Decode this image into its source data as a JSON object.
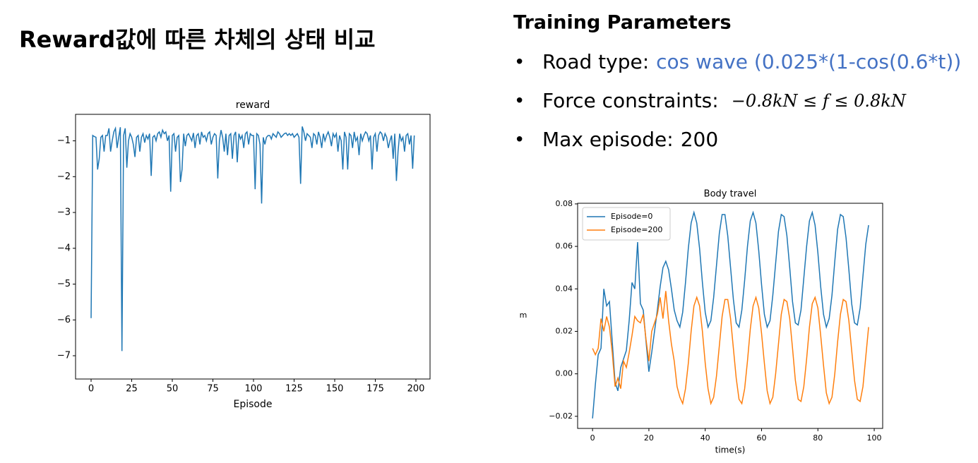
{
  "slide": {
    "title": "Reward값에 따른 차체의 상태 비교",
    "params_heading": "Training Parameters",
    "bullets": [
      {
        "label": "Road type:",
        "value": "cos wave (0.025*(1-cos(0.6*t))"
      },
      {
        "label": "Force constraints:",
        "value": "−0.8kN ≤ f ≤ 0.8kN"
      },
      {
        "label": "Max episode:",
        "value": "200"
      }
    ]
  },
  "chart_data": [
    {
      "type": "line",
      "title": "reward",
      "xlabel": "Episode",
      "x": [
        0,
        1,
        2,
        3,
        4,
        5,
        6,
        7,
        8,
        9,
        10,
        11,
        12,
        13,
        14,
        15,
        16,
        17,
        18,
        19,
        20,
        21,
        22,
        23,
        24,
        25,
        26,
        27,
        28,
        29,
        30,
        31,
        32,
        33,
        34,
        35,
        36,
        37,
        38,
        39,
        40,
        41,
        42,
        43,
        44,
        45,
        46,
        47,
        48,
        49,
        50,
        51,
        52,
        53,
        54,
        55,
        56,
        57,
        58,
        59,
        60,
        61,
        62,
        63,
        64,
        65,
        66,
        67,
        68,
        69,
        70,
        71,
        72,
        73,
        74,
        75,
        76,
        77,
        78,
        79,
        80,
        81,
        82,
        83,
        84,
        85,
        86,
        87,
        88,
        89,
        90,
        91,
        92,
        93,
        94,
        95,
        96,
        97,
        98,
        99,
        100,
        101,
        102,
        103,
        104,
        105,
        106,
        107,
        108,
        109,
        110,
        111,
        112,
        113,
        114,
        115,
        116,
        117,
        118,
        119,
        120,
        121,
        122,
        123,
        124,
        125,
        126,
        127,
        128,
        129,
        130,
        131,
        132,
        133,
        134,
        135,
        136,
        137,
        138,
        139,
        140,
        141,
        142,
        143,
        144,
        145,
        146,
        147,
        148,
        149,
        150,
        151,
        152,
        153,
        154,
        155,
        156,
        157,
        158,
        159,
        160,
        161,
        162,
        163,
        164,
        165,
        166,
        167,
        168,
        169,
        170,
        171,
        172,
        173,
        174,
        175,
        176,
        177,
        178,
        179,
        180,
        181,
        182,
        183,
        184,
        185,
        186,
        187,
        188,
        189,
        190,
        191,
        192,
        193,
        194,
        195,
        196,
        197,
        198,
        199
      ],
      "series": [
        {
          "color": "#1f77b4",
          "values": [
            -5.95,
            -0.85,
            -0.88,
            -0.9,
            -1.8,
            -1.5,
            -0.9,
            -0.85,
            -1.3,
            -0.85,
            -0.85,
            -0.65,
            -1.3,
            -1.0,
            -0.75,
            -0.65,
            -1.2,
            -0.9,
            -0.62,
            -6.87,
            -0.85,
            -0.65,
            -1.75,
            -1.0,
            -0.8,
            -0.9,
            -1.1,
            -1.45,
            -0.9,
            -0.85,
            -1.3,
            -0.9,
            -0.8,
            -1.05,
            -0.85,
            -0.95,
            -0.8,
            -1.98,
            -0.9,
            -0.85,
            -1.0,
            -0.8,
            -0.75,
            -0.9,
            -0.7,
            -0.8,
            -0.75,
            -1.0,
            -0.85,
            -2.42,
            -0.85,
            -0.8,
            -1.3,
            -0.9,
            -0.85,
            -2.15,
            -1.8,
            -0.8,
            -1.15,
            -0.85,
            -0.8,
            -0.9,
            -1.0,
            -0.78,
            -1.2,
            -0.85,
            -0.8,
            -1.1,
            -0.75,
            -0.9,
            -0.85,
            -1.0,
            -0.8,
            -0.75,
            -1.1,
            -0.9,
            -0.8,
            -0.85,
            -2.05,
            -1.0,
            -0.7,
            -0.9,
            -1.3,
            -0.8,
            -1.4,
            -0.85,
            -0.8,
            -1.5,
            -0.85,
            -0.75,
            -1.6,
            -0.8,
            -0.95,
            -0.85,
            -1.2,
            -0.8,
            -0.75,
            -1.1,
            -0.8,
            -0.85,
            -0.85,
            -2.35,
            -0.8,
            -0.85,
            -1.1,
            -2.75,
            -0.9,
            -1.1,
            -0.9,
            -0.85,
            -0.85,
            -0.95,
            -0.8,
            -0.85,
            -0.9,
            -0.75,
            -0.8,
            -0.9,
            -0.85,
            -0.8,
            -0.78,
            -0.85,
            -0.8,
            -0.85,
            -0.8,
            -0.9,
            -0.85,
            -0.8,
            -0.9,
            -2.2,
            -0.6,
            -0.75,
            -1.0,
            -0.8,
            -0.85,
            -0.9,
            -1.2,
            -0.8,
            -0.85,
            -1.1,
            -0.75,
            -0.9,
            -1.2,
            -0.8,
            -1.0,
            -0.85,
            -0.75,
            -0.9,
            -1.15,
            -0.8,
            -0.9,
            -0.8,
            -1.3,
            -0.85,
            -1.0,
            -1.8,
            -0.75,
            -0.9,
            -1.8,
            -0.8,
            -0.85,
            -1.2,
            -0.75,
            -1.0,
            -0.9,
            -1.4,
            -0.8,
            -1.0,
            -0.85,
            -0.75,
            -0.8,
            -1.0,
            -0.85,
            -1.8,
            -0.9,
            -0.8,
            -1.3,
            -0.85,
            -0.75,
            -0.8,
            -1.0,
            -0.8,
            -0.9,
            -1.2,
            -1.0,
            -0.85,
            -1.5,
            -0.8,
            -2.12,
            -1.3,
            -0.8,
            -1.0,
            -0.9,
            -1.3,
            -0.85,
            -0.8,
            -1.1,
            -0.85,
            -1.78,
            -0.85
          ]
        }
      ],
      "xlim": [
        -9.57,
        208.7
      ],
      "ylim": [
        -7.65,
        -0.26
      ],
      "xticks": [
        0,
        25,
        50,
        75,
        100,
        125,
        150,
        175,
        200
      ],
      "yticks": [
        {
          "value": -1,
          "label": "−1"
        },
        {
          "value": -2,
          "label": "−2"
        },
        {
          "value": -3,
          "label": "−3"
        },
        {
          "value": -4,
          "label": "−4"
        },
        {
          "value": -5,
          "label": "−5"
        },
        {
          "value": -6,
          "label": "−6"
        },
        {
          "value": -7,
          "label": "−7"
        }
      ]
    },
    {
      "type": "line",
      "title": "Body travel",
      "xlabel": "time(s)",
      "ylabel": "m",
      "legend": "upper left",
      "x": [
        0,
        1,
        2,
        3,
        4,
        5,
        6,
        7,
        8,
        9,
        10,
        11,
        12,
        13,
        14,
        15,
        16,
        17,
        18,
        19,
        20,
        21,
        22,
        23,
        24,
        25,
        26,
        27,
        28,
        29,
        30,
        31,
        32,
        33,
        34,
        35,
        36,
        37,
        38,
        39,
        40,
        41,
        42,
        43,
        44,
        45,
        46,
        47,
        48,
        49,
        50,
        51,
        52,
        53,
        54,
        55,
        56,
        57,
        58,
        59,
        60,
        61,
        62,
        63,
        64,
        65,
        66,
        67,
        68,
        69,
        70,
        71,
        72,
        73,
        74,
        75,
        76,
        77,
        78,
        79,
        80,
        81,
        82,
        83,
        84,
        85,
        86,
        87,
        88,
        89,
        90,
        91,
        92,
        93,
        94,
        95,
        96,
        97,
        98
      ],
      "series": [
        {
          "name": "Episode=0",
          "color": "#1f77b4",
          "values": [
            -0.021,
            -0.005,
            0.009,
            0.012,
            0.04,
            0.032,
            0.034,
            0.015,
            -0.004,
            -0.008,
            0.003,
            0.007,
            0.011,
            0.025,
            0.043,
            0.04,
            0.062,
            0.033,
            0.03,
            0.015,
            0.001,
            0.01,
            0.02,
            0.03,
            0.041,
            0.05,
            0.053,
            0.049,
            0.04,
            0.03,
            0.025,
            0.022,
            0.029,
            0.043,
            0.059,
            0.071,
            0.076,
            0.071,
            0.059,
            0.043,
            0.029,
            0.022,
            0.025,
            0.036,
            0.051,
            0.066,
            0.075,
            0.075,
            0.065,
            0.05,
            0.035,
            0.024,
            0.022,
            0.03,
            0.044,
            0.06,
            0.072,
            0.076,
            0.071,
            0.058,
            0.042,
            0.028,
            0.022,
            0.025,
            0.037,
            0.052,
            0.067,
            0.075,
            0.074,
            0.065,
            0.05,
            0.034,
            0.024,
            0.023,
            0.03,
            0.045,
            0.06,
            0.072,
            0.076,
            0.07,
            0.057,
            0.041,
            0.028,
            0.022,
            0.026,
            0.037,
            0.053,
            0.068,
            0.075,
            0.074,
            0.064,
            0.049,
            0.033,
            0.024,
            0.023,
            0.031,
            0.046,
            0.061,
            0.07
          ]
        },
        {
          "name": "Episode=200",
          "color": "#ff7f0e",
          "values": [
            0.012,
            0.009,
            0.012,
            0.026,
            0.02,
            0.027,
            0.022,
            0.01,
            -0.006,
            -0.002,
            -0.007,
            0.006,
            0.003,
            0.01,
            0.018,
            0.027,
            0.025,
            0.024,
            0.028,
            0.016,
            0.006,
            0.02,
            0.024,
            0.028,
            0.036,
            0.026,
            0.039,
            0.025,
            0.014,
            0.006,
            -0.006,
            -0.011,
            -0.014,
            -0.007,
            0.005,
            0.02,
            0.032,
            0.036,
            0.032,
            0.02,
            0.005,
            -0.007,
            -0.014,
            -0.011,
            -0.001,
            0.013,
            0.027,
            0.035,
            0.035,
            0.026,
            0.012,
            -0.002,
            -0.012,
            -0.014,
            -0.007,
            0.006,
            0.021,
            0.032,
            0.036,
            0.031,
            0.019,
            0.005,
            -0.008,
            -0.014,
            -0.011,
            0.0,
            0.014,
            0.028,
            0.035,
            0.034,
            0.026,
            0.012,
            -0.003,
            -0.012,
            -0.013,
            -0.006,
            0.007,
            0.022,
            0.033,
            0.036,
            0.031,
            0.018,
            0.004,
            -0.009,
            -0.014,
            -0.011,
            0.0,
            0.015,
            0.028,
            0.035,
            0.034,
            0.025,
            0.011,
            -0.003,
            -0.012,
            -0.013,
            -0.006,
            0.008,
            0.022
          ]
        }
      ],
      "xlim": [
        -5.3,
        103
      ],
      "ylim": [
        -0.0257,
        0.0803
      ],
      "xticks": [
        0,
        20,
        40,
        60,
        80,
        100
      ],
      "yticks": [
        {
          "value": -0.02,
          "label": "−0.02"
        },
        {
          "value": 0,
          "label": "0.00"
        },
        0.02,
        0.04,
        0.06,
        0.08
      ]
    }
  ]
}
